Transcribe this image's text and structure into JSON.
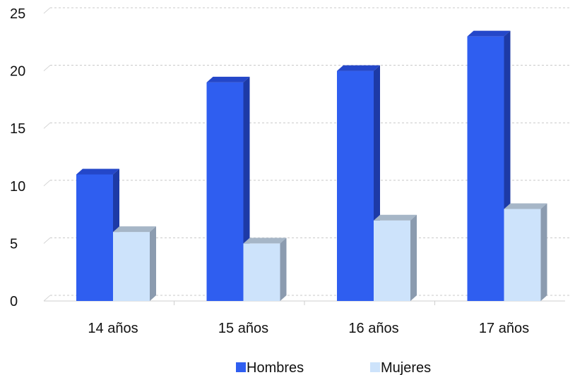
{
  "chart_data": {
    "type": "bar",
    "categories": [
      "14 años",
      "15 años",
      "16 años",
      "17 años"
    ],
    "series": [
      {
        "name": "Hombres",
        "values": [
          11,
          19,
          20,
          23
        ],
        "color": "#2f5ef0",
        "top_color": "#2447c9",
        "side_color": "#1d3aa6"
      },
      {
        "name": "Mujeres",
        "values": [
          6,
          5,
          7,
          8
        ],
        "color": "#cde3fb",
        "top_color": "#a6b6c7",
        "side_color": "#8b9baf"
      }
    ],
    "ylim": [
      0,
      25
    ],
    "yticks": [
      0,
      5,
      10,
      15,
      20,
      25
    ],
    "grid": true,
    "legend_position": "bottom",
    "title": "",
    "xlabel": "",
    "ylabel": ""
  }
}
